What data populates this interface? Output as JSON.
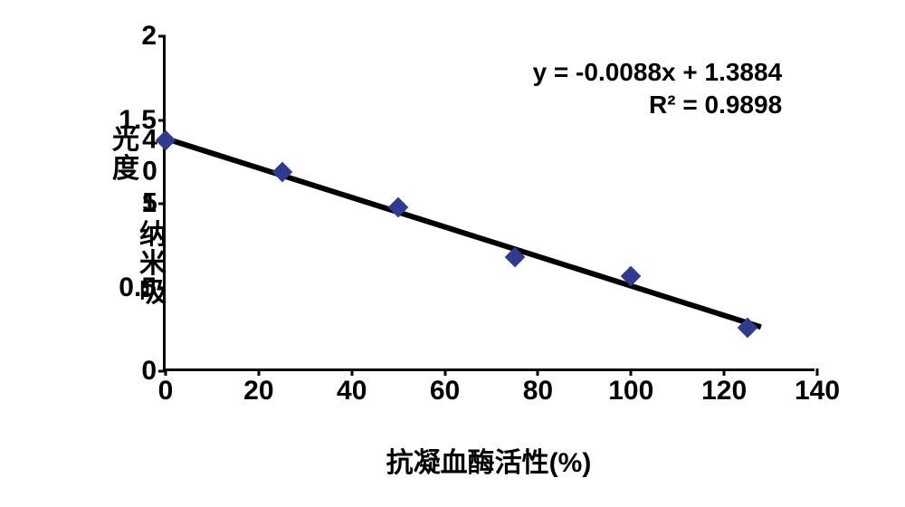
{
  "chart": {
    "type": "scatter-with-trendline",
    "y_label": "405纳米吸光度",
    "x_label": "抗凝血酶活性(%)",
    "equation_line1": "y = -0.0088x + 1.3884",
    "equation_line2": "R² = 0.9898",
    "equation_fontsize": 28,
    "label_fontsize": 30,
    "tick_fontsize": 30,
    "background_color": "#ffffff",
    "axis_color": "#000000",
    "marker_color": "#2e3b8f",
    "marker_shape": "diamond",
    "marker_size": 16,
    "trendline_color": "#000000",
    "trendline_width": 6,
    "xlim": [
      0,
      140
    ],
    "ylim": [
      0,
      2
    ],
    "x_ticks": [
      0,
      20,
      40,
      60,
      80,
      100,
      120,
      140
    ],
    "y_ticks": [
      0,
      0.5,
      1,
      1.5,
      2
    ],
    "y_tick_labels": [
      "0",
      "0.5",
      "1",
      "1.5",
      "2"
    ],
    "x_tick_labels": [
      "0",
      "20",
      "40",
      "60",
      "80",
      "100",
      "120",
      "140"
    ],
    "data_points": [
      {
        "x": 0,
        "y": 1.38
      },
      {
        "x": 25,
        "y": 1.19
      },
      {
        "x": 50,
        "y": 0.98
      },
      {
        "x": 75,
        "y": 0.68
      },
      {
        "x": 100,
        "y": 0.57
      },
      {
        "x": 125,
        "y": 0.26
      }
    ],
    "trendline": {
      "slope": -0.0088,
      "intercept": 1.3884,
      "x_start": 0,
      "x_end": 128
    },
    "equation_pos": {
      "right_pct": 5,
      "top_pct": 6
    }
  }
}
